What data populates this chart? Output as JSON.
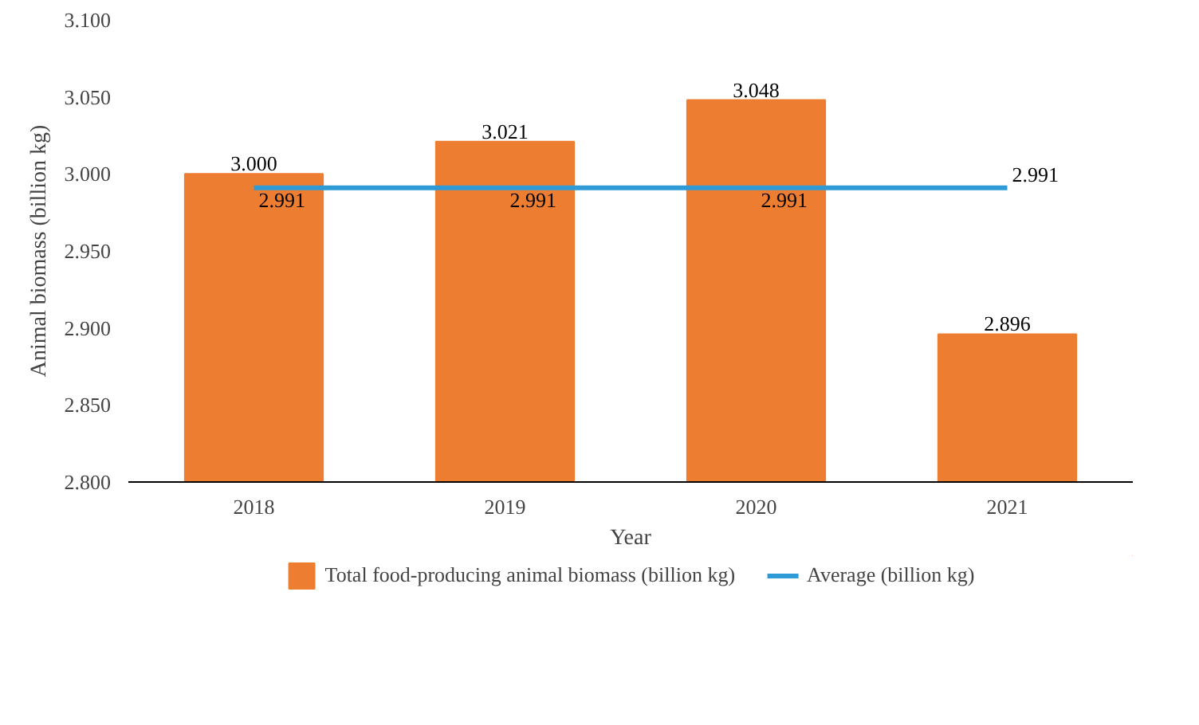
{
  "chart_data": {
    "type": "bar",
    "xlabel": "Year",
    "ylabel": "Animal biomass (billion kg)",
    "categories": [
      "2018",
      "2019",
      "2020",
      "2021"
    ],
    "series": [
      {
        "name": "Total food-producing animal biomass (billion kg)",
        "color": "#ed7d31",
        "values": [
          3.0,
          3.021,
          3.048,
          2.896
        ],
        "value_labels": [
          "3.000",
          "3.021",
          "3.048",
          "2.896"
        ]
      },
      {
        "name": "Average (billion kg)",
        "type": "line",
        "color": "#2e9bd6",
        "values": [
          2.991,
          2.991,
          2.991,
          2.991
        ],
        "value_labels": [
          "2.991",
          "2.991",
          "2.991",
          "2.991"
        ]
      }
    ],
    "ylim": [
      2.8,
      3.1
    ],
    "yticks": [
      {
        "value": 2.8,
        "label": "2.800"
      },
      {
        "value": 2.85,
        "label": "2.850"
      },
      {
        "value": 2.9,
        "label": "2.900"
      },
      {
        "value": 2.95,
        "label": "2.950"
      },
      {
        "value": 3.0,
        "label": "3.000"
      },
      {
        "value": 3.05,
        "label": "3.050"
      },
      {
        "value": 3.1,
        "label": "3.100"
      }
    ],
    "grid": false,
    "legend": "bottom"
  }
}
